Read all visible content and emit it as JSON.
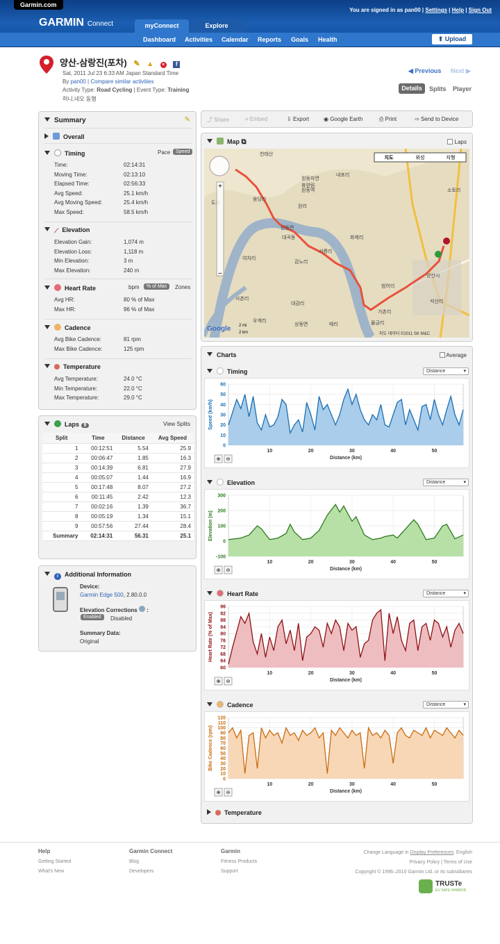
{
  "brand": {
    "site": "Garmin.com",
    "logo": "GARMIN",
    "logo_sub": "Connect"
  },
  "account": {
    "signed_in": "You are signed in as pan00",
    "settings": "Settings",
    "help": "Help",
    "sign_out": "Sign Out"
  },
  "tabs": [
    "myConnect",
    "Explore"
  ],
  "subnav": [
    "Dashboard",
    "Activities",
    "Calendar",
    "Reports",
    "Goals",
    "Health"
  ],
  "upload": "Upload",
  "activity": {
    "title": "양산-삼랑진(포차)",
    "date": "Sat, 2011 Jul 23 6:33 AM Japan Standard Time",
    "by_prefix": "By",
    "user": "pan00",
    "compare": "Compare similar activities",
    "type_label": "Activity Type:",
    "type": "Road Cycling",
    "event_label": "Event Type:",
    "event": "Training",
    "note": "허니,네오 동행"
  },
  "pager": {
    "prev": "Previous",
    "next": "Next"
  },
  "views": [
    "Details",
    "Splits",
    "Player"
  ],
  "summary": {
    "title": "Summary",
    "overall": "Overall",
    "timing": {
      "title": "Timing",
      "toggle": [
        "Pace",
        "Speed"
      ],
      "rows": [
        [
          "Time:",
          "02:14:31"
        ],
        [
          "Moving Time:",
          "02:13:10"
        ],
        [
          "Elapsed Time:",
          "02:56:33"
        ],
        [
          "Avg Speed:",
          "25.1 km/h"
        ],
        [
          "Avg Moving Speed:",
          "25.4 km/h"
        ],
        [
          "Max Speed:",
          "58.5 km/h"
        ]
      ]
    },
    "elevation": {
      "title": "Elevation",
      "rows": [
        [
          "Elevation Gain:",
          "1,074 m"
        ],
        [
          "Elevation Loss:",
          "1,118 m"
        ],
        [
          "Min Elevation:",
          "3 m"
        ],
        [
          "Max Elevation:",
          "240 m"
        ]
      ]
    },
    "hr": {
      "title": "Heart Rate",
      "toggle": [
        "bpm",
        "% of Max",
        "Zones"
      ],
      "rows": [
        [
          "Avg HR:",
          "80 % of Max"
        ],
        [
          "Max HR:",
          "96 % of Max"
        ]
      ]
    },
    "cadence": {
      "title": "Cadence",
      "rows": [
        [
          "Avg Bike Cadence:",
          "81 rpm"
        ],
        [
          "Max Bike Cadence:",
          "125 rpm"
        ]
      ]
    },
    "temp": {
      "title": "Temperature",
      "rows": [
        [
          "Avg Temperature:",
          "24.0 °C"
        ],
        [
          "Min Temperature:",
          "22.0 °C"
        ],
        [
          "Max Temperature:",
          "29.0 °C"
        ]
      ]
    }
  },
  "laps": {
    "title": "Laps",
    "count": "9",
    "view": "View Splits",
    "headers": [
      "Split",
      "Time",
      "Distance",
      "Avg Speed"
    ],
    "rows": [
      [
        "1",
        "00:12:51",
        "5.54",
        "25.9"
      ],
      [
        "2",
        "00:06:47",
        "1.85",
        "16.3"
      ],
      [
        "3",
        "00:14:39",
        "6.81",
        "27.9"
      ],
      [
        "4",
        "00:05:07",
        "1.44",
        "16.9"
      ],
      [
        "5",
        "00:17:48",
        "8.07",
        "27.2"
      ],
      [
        "6",
        "00:11:45",
        "2.42",
        "12.3"
      ],
      [
        "7",
        "00:02:16",
        "1.39",
        "36.7"
      ],
      [
        "8",
        "00:05:19",
        "1.34",
        "15.1"
      ],
      [
        "9",
        "00:57:56",
        "27.44",
        "28.4"
      ]
    ],
    "summary": [
      "Summary",
      "02:14:31",
      "56.31",
      "25.1"
    ]
  },
  "info": {
    "title": "Additional Information",
    "device_label": "Device:",
    "device": "Garmin Edge 500",
    "version": ", 2.80.0.0",
    "corr_label": "Elevation Corrections",
    "enabled": "Enabled",
    "disabled": "Disabled",
    "sum_label": "Summary Data:",
    "sum_value": "Original"
  },
  "toolbar": [
    "Share",
    "Embed",
    "Export",
    "Google Earth",
    "Print",
    "Send to Device"
  ],
  "map": {
    "title": "Map",
    "laps": "Laps",
    "types": [
      "지도",
      "위성",
      "지형"
    ],
    "scale": [
      "2 mi",
      "2 km"
    ],
    "copyright": "지도 데이터 ©2011 SK M&C",
    "google": "Google",
    "places": [
      "천태산",
      "내포리",
      "원동자연",
      "휴양림",
      "원동역",
      "용당리",
      "원리",
      "도요",
      "원동면",
      "대곡동",
      "화제리",
      "서룡리",
      "여차리",
      "감노리",
      "범어리",
      "양산시",
      "사촌리",
      "대감리",
      "가촌리",
      "물금리",
      "석산리",
      "우계리",
      "상동면",
      "매리",
      "소토리"
    ]
  },
  "charts": {
    "title": "Charts",
    "average": "Average",
    "xlabel": "Distance (km)",
    "dropdown": "Distance",
    "temp_title": "Temperature"
  },
  "chart_data": [
    {
      "type": "line",
      "title": "Timing",
      "ylabel": "Speed (km/h)",
      "ylim": [
        0,
        60
      ],
      "xlim": [
        0,
        57
      ],
      "yticks": [
        0,
        10,
        20,
        30,
        40,
        50,
        60
      ],
      "xticks": [
        10,
        20,
        30,
        40,
        50
      ],
      "color": "#1a6fb5",
      "fill": "#a9cdea",
      "x": [
        0,
        2,
        3,
        4,
        5,
        6,
        7,
        8,
        9,
        10,
        11,
        12,
        13,
        14,
        15,
        16,
        17,
        18,
        19,
        20,
        21,
        22,
        23,
        24,
        25,
        26,
        27,
        28,
        29,
        30,
        31,
        32,
        33,
        34,
        35,
        36,
        37,
        38,
        39,
        40,
        41,
        42,
        43,
        44,
        45,
        46,
        47,
        48,
        49,
        50,
        51,
        52,
        53,
        54,
        55,
        56,
        57
      ],
      "y": [
        20,
        45,
        36,
        50,
        28,
        48,
        22,
        15,
        30,
        18,
        20,
        28,
        45,
        40,
        12,
        20,
        25,
        13,
        42,
        30,
        15,
        48,
        35,
        40,
        30,
        20,
        30,
        45,
        55,
        40,
        50,
        35,
        25,
        20,
        30,
        25,
        40,
        20,
        18,
        30,
        42,
        45,
        20,
        35,
        25,
        15,
        38,
        40,
        25,
        45,
        30,
        20,
        35,
        48,
        30,
        20,
        35
      ]
    },
    {
      "type": "area",
      "title": "Elevation",
      "ylabel": "Elevation (m)",
      "ylim": [
        -100,
        300
      ],
      "xlim": [
        0,
        57
      ],
      "yticks": [
        -100,
        0,
        100,
        200,
        300
      ],
      "xticks": [
        10,
        20,
        30,
        40,
        50
      ],
      "color": "#2d7a1f",
      "fill": "#b7e0a7",
      "x": [
        0,
        3,
        5,
        7,
        8,
        10,
        12,
        14,
        15,
        16,
        18,
        20,
        22,
        24,
        26,
        27,
        28,
        30,
        31,
        33,
        35,
        37,
        38,
        40,
        41,
        43,
        45,
        46,
        48,
        50,
        52,
        53,
        55,
        57
      ],
      "y": [
        10,
        20,
        40,
        100,
        80,
        10,
        20,
        50,
        110,
        60,
        10,
        20,
        70,
        170,
        240,
        190,
        230,
        130,
        160,
        40,
        10,
        20,
        30,
        40,
        20,
        80,
        140,
        110,
        10,
        20,
        100,
        110,
        15,
        40
      ]
    },
    {
      "type": "line",
      "title": "Heart Rate",
      "ylabel": "Heart Rate (% of Max)",
      "ylim": [
        60,
        96
      ],
      "xlim": [
        0,
        57
      ],
      "yticks": [
        60,
        64,
        68,
        72,
        76,
        80,
        84,
        88,
        92,
        96
      ],
      "xticks": [
        10,
        20,
        30,
        40,
        50
      ],
      "color": "#8e1113",
      "fill": "#eebdc0",
      "x": [
        0,
        1,
        3,
        4,
        5,
        6,
        7,
        8,
        9,
        10,
        11,
        12,
        13,
        14,
        15,
        16,
        17,
        18,
        19,
        20,
        21,
        22,
        23,
        24,
        25,
        26,
        27,
        28,
        29,
        30,
        31,
        32,
        33,
        34,
        35,
        36,
        37,
        38,
        39,
        40,
        41,
        42,
        43,
        44,
        45,
        46,
        47,
        48,
        49,
        50,
        51,
        52,
        53,
        54,
        55,
        56,
        57
      ],
      "y": [
        62,
        72,
        90,
        86,
        92,
        75,
        68,
        80,
        66,
        78,
        70,
        84,
        88,
        74,
        82,
        70,
        86,
        64,
        78,
        80,
        84,
        82,
        72,
        86,
        80,
        88,
        84,
        70,
        86,
        82,
        84,
        66,
        74,
        76,
        88,
        92,
        94,
        64,
        92,
        80,
        90,
        76,
        70,
        86,
        88,
        70,
        84,
        86,
        76,
        88,
        86,
        78,
        84,
        72,
        82,
        86,
        80
      ]
    },
    {
      "type": "line",
      "title": "Cadence",
      "ylabel": "Bike Cadence (rpm)",
      "ylim": [
        0,
        120
      ],
      "xlim": [
        0,
        57
      ],
      "yticks": [
        0,
        10,
        20,
        30,
        40,
        50,
        60,
        70,
        80,
        90,
        100,
        110,
        120
      ],
      "xticks": [
        10,
        20,
        30,
        40,
        50
      ],
      "color": "#c96c0f",
      "fill": "#f8d7b7",
      "x": [
        0,
        1,
        2,
        3,
        4,
        5,
        6,
        7,
        8,
        9,
        10,
        11,
        12,
        13,
        14,
        15,
        16,
        17,
        18,
        19,
        20,
        21,
        22,
        23,
        24,
        25,
        26,
        27,
        28,
        29,
        30,
        31,
        32,
        33,
        34,
        35,
        36,
        37,
        38,
        39,
        40,
        41,
        42,
        43,
        44,
        45,
        46,
        47,
        48,
        49,
        50,
        51,
        52,
        53,
        54,
        55,
        56,
        57
      ],
      "y": [
        90,
        100,
        80,
        95,
        10,
        85,
        90,
        20,
        100,
        80,
        95,
        85,
        90,
        70,
        100,
        85,
        90,
        75,
        95,
        85,
        90,
        100,
        80,
        90,
        10,
        95,
        85,
        100,
        90,
        80,
        95,
        85,
        90,
        20,
        100,
        85,
        90,
        80,
        95,
        85,
        30,
        90,
        100,
        85,
        80,
        95,
        90,
        85,
        100,
        80,
        95,
        90,
        85,
        100,
        90,
        80,
        95,
        85
      ]
    }
  ],
  "footer": {
    "c1_title": "Help",
    "c1": [
      "Getting Started",
      "What's New"
    ],
    "c2_title": "Garmin Connect",
    "c2": [
      "Blog",
      "Developers"
    ],
    "c3_title": "Garmin",
    "c3": [
      "Fitness Products",
      "Support"
    ],
    "lang": "Change Language in",
    "display": "Display Preferences",
    "lang_val": ": English",
    "privacy": "Privacy Policy | Terms of Use",
    "copyright": "Copyright © 1996–2010 Garmin Ltd. or its subsidiaries",
    "truste": "TRUSTe",
    "truste_sub": "EU SAFE HARBOR"
  }
}
